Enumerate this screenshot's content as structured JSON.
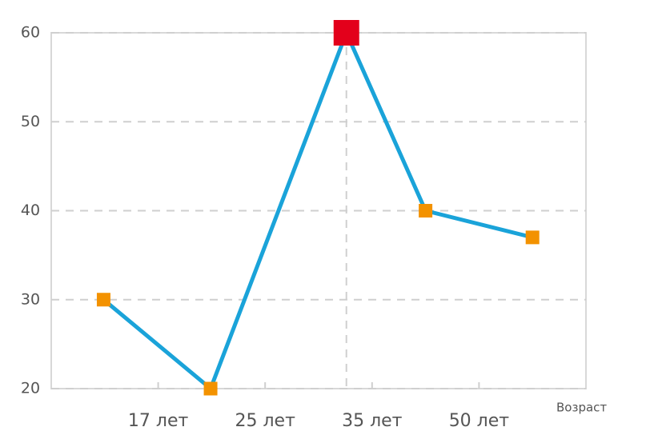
{
  "chart_data": {
    "type": "line",
    "x_label": "Возраст",
    "x": [
      0.49,
      1.49,
      2.76,
      3.5,
      4.5
    ],
    "xlim": [
      0,
      5
    ],
    "xticks": [
      {
        "value": 1,
        "label": "17 лет"
      },
      {
        "value": 2,
        "label": "25 лет"
      },
      {
        "value": 3,
        "label": "35 лет"
      },
      {
        "value": 4,
        "label": "50 лет"
      }
    ],
    "series": [
      {
        "color": "#1aa3d9",
        "marker_color": "#f39200",
        "values": [
          30,
          20,
          60,
          40,
          37
        ]
      }
    ],
    "highlight_index": 2,
    "highlight_color": "#e3001b",
    "ylim": [
      20,
      60
    ],
    "yticks": [
      20,
      30,
      40,
      50,
      60
    ],
    "grid": true
  }
}
